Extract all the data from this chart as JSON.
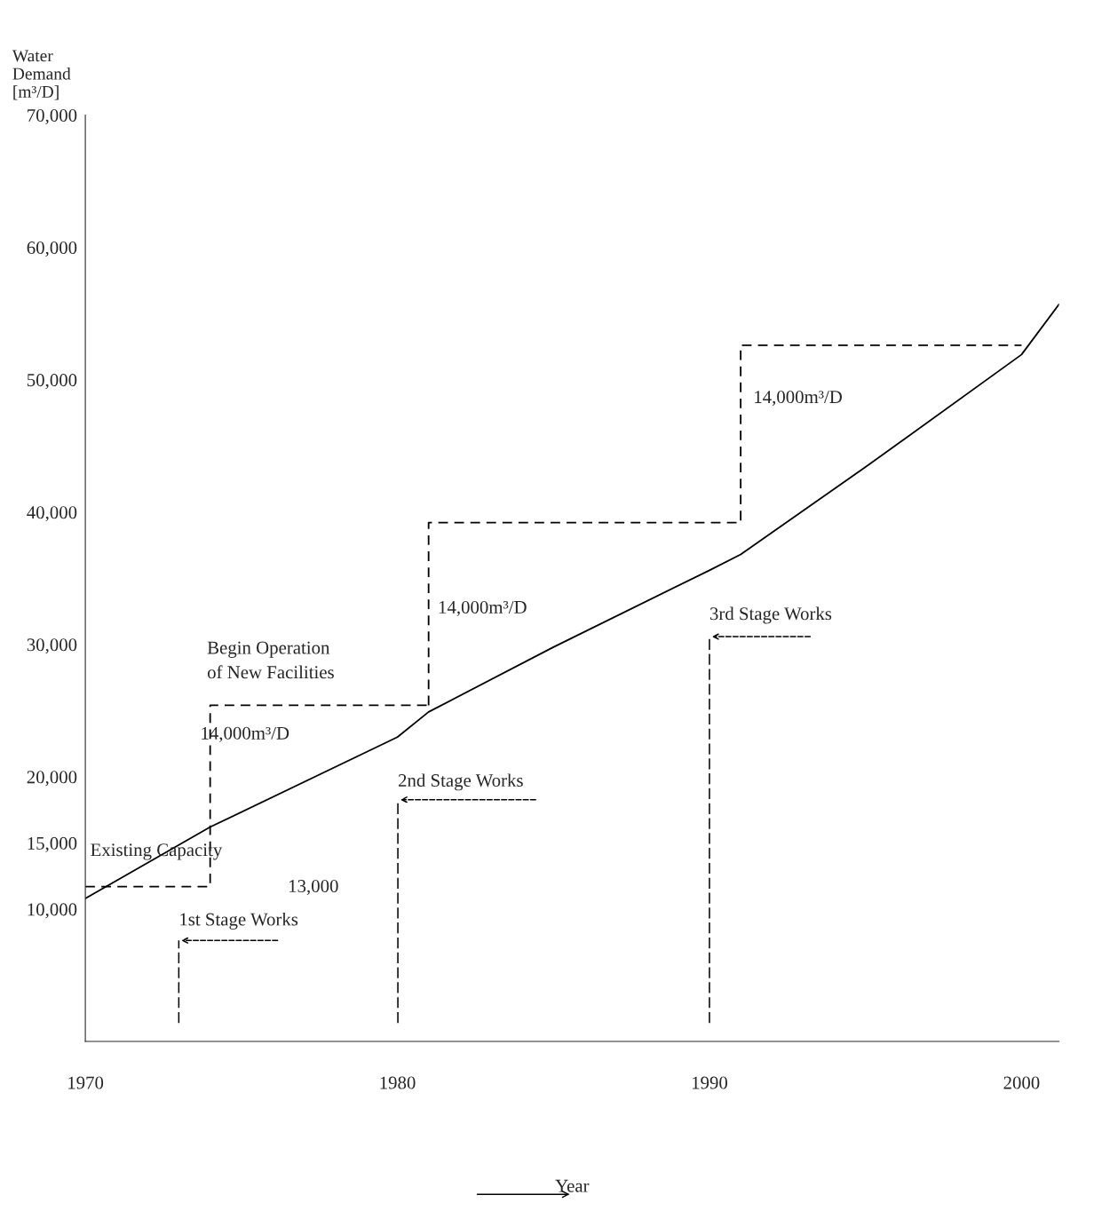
{
  "chart_data": {
    "type": "line",
    "xlabel": "Year",
    "ylabel": "Water\nDemand\n[m³/D]",
    "xlim": [
      1970,
      2001.2
    ],
    "ylim": [
      0,
      70000
    ],
    "xticks": [
      1970,
      1980,
      1990,
      2000
    ],
    "yticks": [
      {
        "value": 10000,
        "label": "10,000"
      },
      {
        "value": 15000,
        "label": "15,000"
      },
      {
        "value": 20000,
        "label": "20,000"
      },
      {
        "value": 30000,
        "label": "30,000"
      },
      {
        "value": 40000,
        "label": "40,000"
      },
      {
        "value": 50000,
        "label": "50,000"
      },
      {
        "value": 60000,
        "label": "60,000"
      },
      {
        "value": 70000,
        "label": "70,000"
      }
    ],
    "grid": false,
    "legend": false,
    "series": [
      {
        "line_style": "solid",
        "color": "#000000",
        "x": [
          1970,
          1974,
          1980,
          1981,
          1985,
          1990,
          1991,
          1995,
          2000,
          2001.2
        ],
        "values": [
          10800,
          16200,
          23000,
          24900,
          29800,
          35600,
          36800,
          43400,
          51900,
          55700
        ]
      },
      {
        "type": "step",
        "line_style": "dashed",
        "color": "#000000",
        "x": [
          1970,
          1974,
          1981
        ],
        "values": [
          11700,
          25400,
          25400
        ]
      },
      {
        "type": "step",
        "line_style": "dashed",
        "color": "#000000",
        "x": [
          1981,
          1981,
          1991,
          2000
        ],
        "values": [
          25400,
          39200,
          52600,
          52600
        ]
      }
    ],
    "annotations": [
      "Existing Capacity",
      "13,000",
      "1st Stage Works",
      "2nd Stage Works",
      "3rd Stage Works",
      "Begin Operation\nof New Facilities",
      "14,000m³/D",
      "14,000m³/D",
      "14,000m³/D"
    ]
  }
}
